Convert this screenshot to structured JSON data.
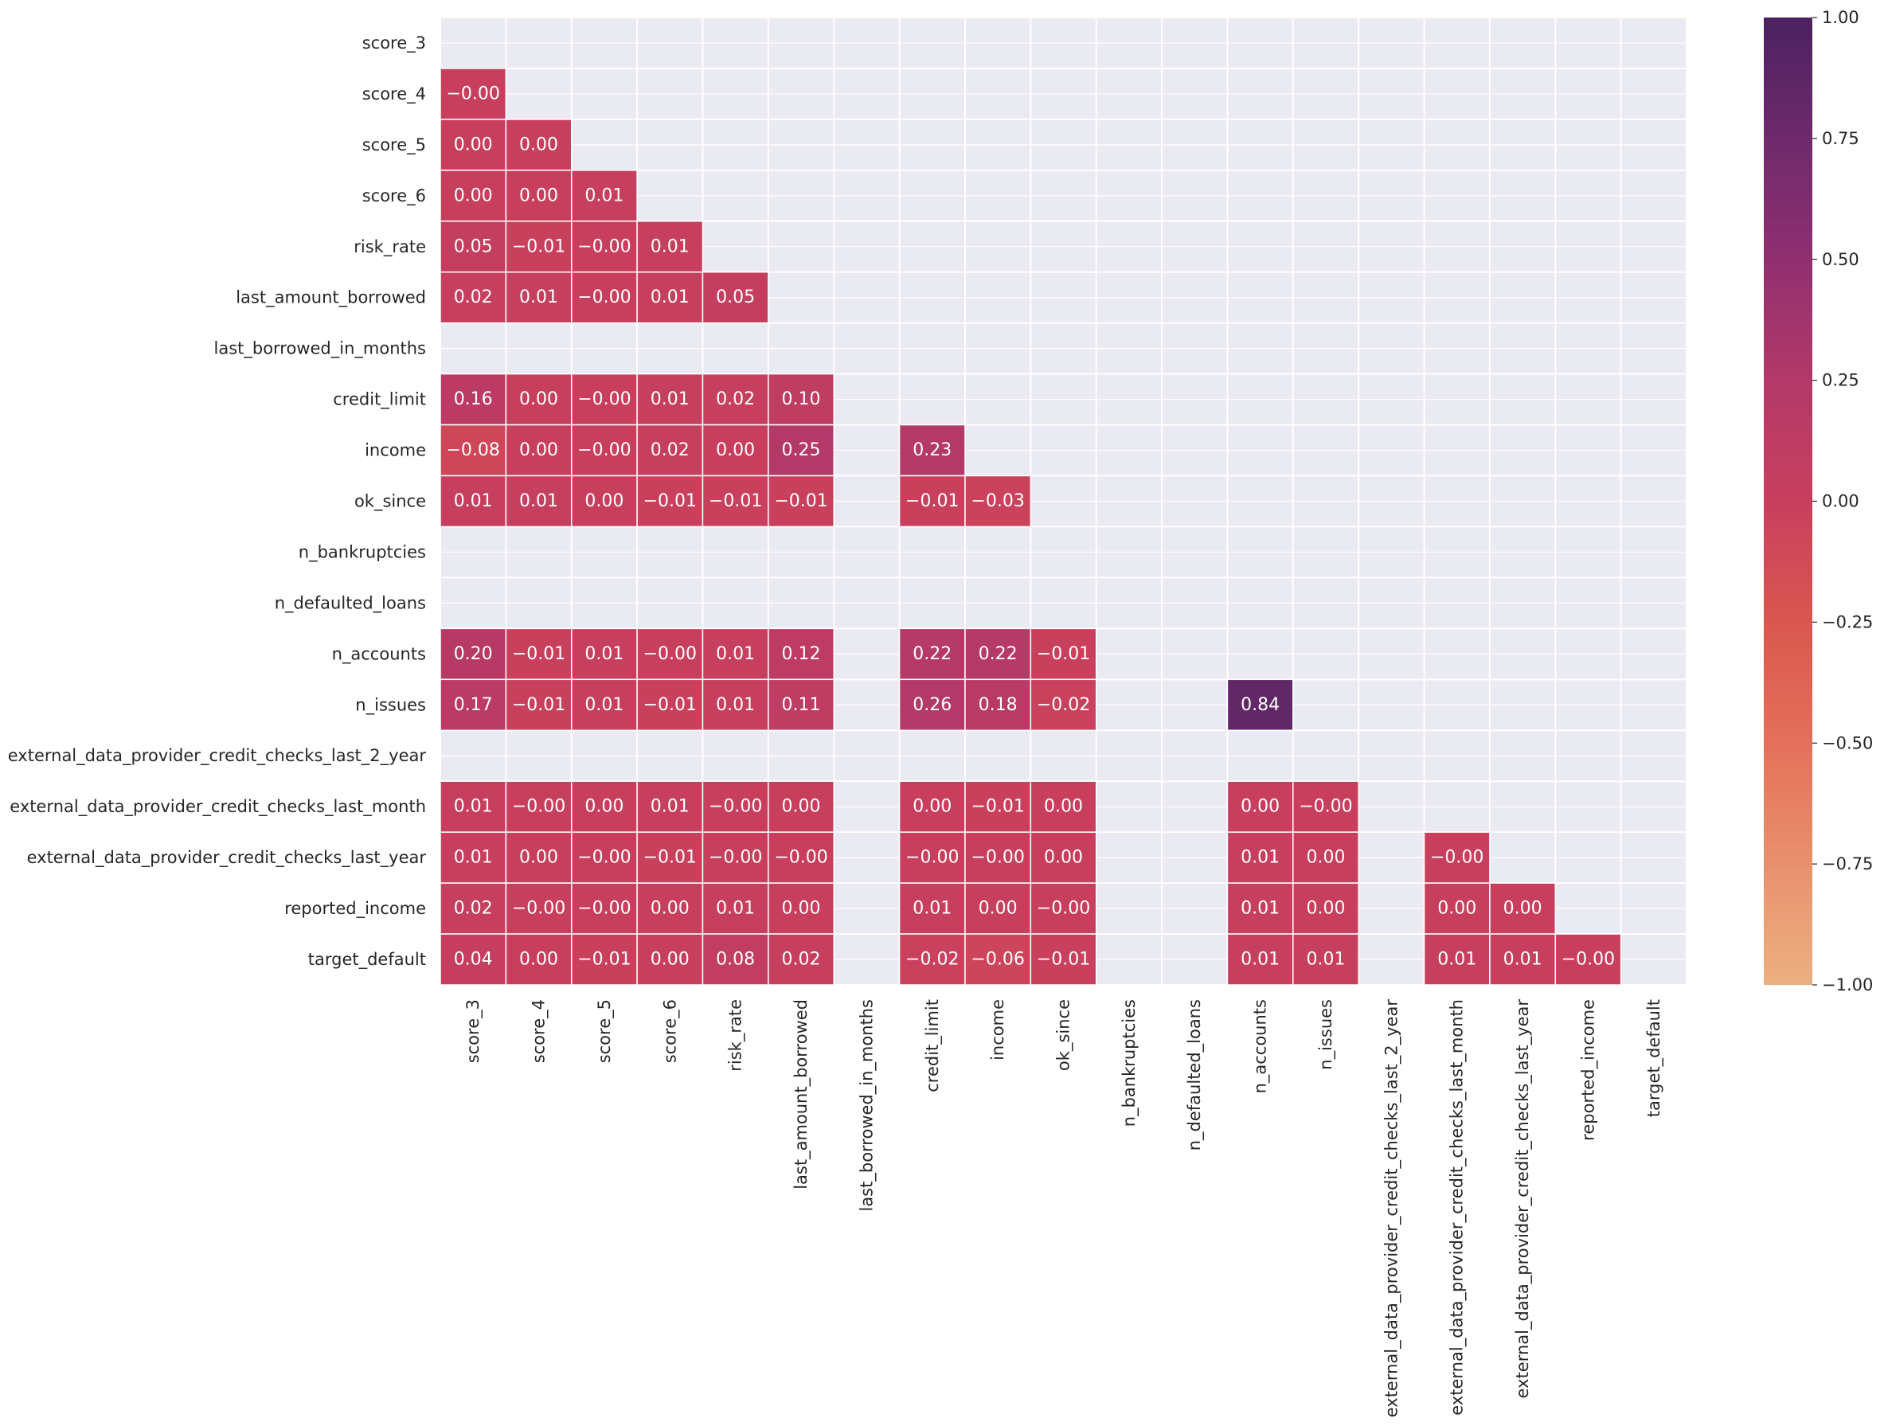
{
  "chart_data": {
    "type": "heatmap",
    "title": "",
    "xlabel": "",
    "ylabel": "",
    "variables": [
      "score_3",
      "score_4",
      "score_5",
      "score_6",
      "risk_rate",
      "last_amount_borrowed",
      "last_borrowed_in_months",
      "credit_limit",
      "income",
      "ok_since",
      "n_bankruptcies",
      "n_defaulted_loans",
      "n_accounts",
      "n_issues",
      "external_data_provider_credit_checks_last_2_year",
      "external_data_provider_credit_checks_last_month",
      "external_data_provider_credit_checks_last_year",
      "reported_income",
      "target_default"
    ],
    "mask": "upper triangle including diagonal",
    "matrix": [
      [
        null,
        null,
        null,
        null,
        null,
        null,
        null,
        null,
        null,
        null,
        null,
        null,
        null,
        null,
        null,
        null,
        null,
        null,
        null
      ],
      [
        -0.0,
        null,
        null,
        null,
        null,
        null,
        null,
        null,
        null,
        null,
        null,
        null,
        null,
        null,
        null,
        null,
        null,
        null,
        null
      ],
      [
        0.0,
        0.0,
        null,
        null,
        null,
        null,
        null,
        null,
        null,
        null,
        null,
        null,
        null,
        null,
        null,
        null,
        null,
        null,
        null
      ],
      [
        0.0,
        0.0,
        0.01,
        null,
        null,
        null,
        null,
        null,
        null,
        null,
        null,
        null,
        null,
        null,
        null,
        null,
        null,
        null,
        null
      ],
      [
        0.05,
        -0.01,
        -0.0,
        0.01,
        null,
        null,
        null,
        null,
        null,
        null,
        null,
        null,
        null,
        null,
        null,
        null,
        null,
        null,
        null
      ],
      [
        0.02,
        0.01,
        -0.0,
        0.01,
        0.05,
        null,
        null,
        null,
        null,
        null,
        null,
        null,
        null,
        null,
        null,
        null,
        null,
        null,
        null
      ],
      [
        null,
        null,
        null,
        null,
        null,
        null,
        null,
        null,
        null,
        null,
        null,
        null,
        null,
        null,
        null,
        null,
        null,
        null,
        null
      ],
      [
        0.16,
        0.0,
        -0.0,
        0.01,
        0.02,
        0.1,
        null,
        null,
        null,
        null,
        null,
        null,
        null,
        null,
        null,
        null,
        null,
        null,
        null
      ],
      [
        -0.08,
        0.0,
        -0.0,
        0.02,
        0.0,
        0.25,
        null,
        0.23,
        null,
        null,
        null,
        null,
        null,
        null,
        null,
        null,
        null,
        null,
        null
      ],
      [
        0.01,
        0.01,
        0.0,
        -0.01,
        -0.01,
        -0.01,
        null,
        -0.01,
        -0.03,
        null,
        null,
        null,
        null,
        null,
        null,
        null,
        null,
        null,
        null
      ],
      [
        null,
        null,
        null,
        null,
        null,
        null,
        null,
        null,
        null,
        null,
        null,
        null,
        null,
        null,
        null,
        null,
        null,
        null,
        null
      ],
      [
        null,
        null,
        null,
        null,
        null,
        null,
        null,
        null,
        null,
        null,
        null,
        null,
        null,
        null,
        null,
        null,
        null,
        null,
        null
      ],
      [
        0.2,
        -0.01,
        0.01,
        -0.0,
        0.01,
        0.12,
        null,
        0.22,
        0.22,
        -0.01,
        null,
        null,
        null,
        null,
        null,
        null,
        null,
        null,
        null
      ],
      [
        0.17,
        -0.01,
        0.01,
        -0.01,
        0.01,
        0.11,
        null,
        0.26,
        0.18,
        -0.02,
        null,
        null,
        0.84,
        null,
        null,
        null,
        null,
        null,
        null
      ],
      [
        null,
        null,
        null,
        null,
        null,
        null,
        null,
        null,
        null,
        null,
        null,
        null,
        null,
        null,
        null,
        null,
        null,
        null,
        null
      ],
      [
        0.01,
        -0.0,
        0.0,
        0.01,
        -0.0,
        0.0,
        null,
        0.0,
        -0.01,
        0.0,
        null,
        null,
        0.0,
        -0.0,
        null,
        null,
        null,
        null,
        null
      ],
      [
        0.01,
        0.0,
        -0.0,
        -0.01,
        -0.0,
        -0.0,
        null,
        -0.0,
        -0.0,
        0.0,
        null,
        null,
        0.01,
        0.0,
        null,
        -0.0,
        null,
        null,
        null
      ],
      [
        0.02,
        -0.0,
        -0.0,
        0.0,
        0.01,
        0.0,
        null,
        0.01,
        0.0,
        -0.0,
        null,
        null,
        0.01,
        0.0,
        null,
        0.0,
        0.0,
        null,
        null
      ],
      [
        0.04,
        0.0,
        -0.01,
        0.0,
        0.08,
        0.02,
        null,
        -0.02,
        -0.06,
        -0.01,
        null,
        null,
        0.01,
        0.01,
        null,
        0.01,
        0.01,
        -0.0,
        null
      ]
    ],
    "labels": [
      [
        "",
        "",
        "",
        "",
        "",
        "",
        "",
        "",
        "",
        "",
        "",
        "",
        "",
        "",
        "",
        "",
        "",
        "",
        ""
      ],
      [
        "-0.00",
        "",
        "",
        "",
        "",
        "",
        "",
        "",
        "",
        "",
        "",
        "",
        "",
        "",
        "",
        "",
        "",
        "",
        ""
      ],
      [
        "0.00",
        "0.00",
        "",
        "",
        "",
        "",
        "",
        "",
        "",
        "",
        "",
        "",
        "",
        "",
        "",
        "",
        "",
        "",
        ""
      ],
      [
        "0.00",
        "0.00",
        "0.01",
        "",
        "",
        "",
        "",
        "",
        "",
        "",
        "",
        "",
        "",
        "",
        "",
        "",
        "",
        "",
        ""
      ],
      [
        "0.05",
        "-0.01",
        "-0.00",
        "0.01",
        "",
        "",
        "",
        "",
        "",
        "",
        "",
        "",
        "",
        "",
        "",
        "",
        "",
        "",
        ""
      ],
      [
        "0.02",
        "0.01",
        "-0.00",
        "0.01",
        "0.05",
        "",
        "",
        "",
        "",
        "",
        "",
        "",
        "",
        "",
        "",
        "",
        "",
        "",
        ""
      ],
      [
        "",
        "",
        "",
        "",
        "",
        "",
        "",
        "",
        "",
        "",
        "",
        "",
        "",
        "",
        "",
        "",
        "",
        "",
        ""
      ],
      [
        "0.16",
        "0.00",
        "-0.00",
        "0.01",
        "0.02",
        "0.10",
        "",
        "",
        "",
        "",
        "",
        "",
        "",
        "",
        "",
        "",
        "",
        "",
        ""
      ],
      [
        "-0.08",
        "0.00",
        "-0.00",
        "0.02",
        "0.00",
        "0.25",
        "",
        "0.23",
        "",
        "",
        "",
        "",
        "",
        "",
        "",
        "",
        "",
        "",
        ""
      ],
      [
        "0.01",
        "0.01",
        "0.00",
        "-0.01",
        "-0.01",
        "-0.01",
        "",
        "-0.01",
        "-0.03",
        "",
        "",
        "",
        "",
        "",
        "",
        "",
        "",
        "",
        ""
      ],
      [
        "",
        "",
        "",
        "",
        "",
        "",
        "",
        "",
        "",
        "",
        "",
        "",
        "",
        "",
        "",
        "",
        "",
        "",
        ""
      ],
      [
        "",
        "",
        "",
        "",
        "",
        "",
        "",
        "",
        "",
        "",
        "",
        "",
        "",
        "",
        "",
        "",
        "",
        "",
        ""
      ],
      [
        "0.20",
        "-0.01",
        "0.01",
        "-0.00",
        "0.01",
        "0.12",
        "",
        "0.22",
        "0.22",
        "-0.01",
        "",
        "",
        "",
        "",
        "",
        "",
        "",
        "",
        ""
      ],
      [
        "0.17",
        "-0.01",
        "0.01",
        "-0.01",
        "0.01",
        "0.11",
        "",
        "0.26",
        "0.18",
        "-0.02",
        "",
        "",
        "0.84",
        "",
        "",
        "",
        "",
        "",
        ""
      ],
      [
        "",
        "",
        "",
        "",
        "",
        "",
        "",
        "",
        "",
        "",
        "",
        "",
        "",
        "",
        "",
        "",
        "",
        "",
        ""
      ],
      [
        "0.01",
        "-0.00",
        "0.00",
        "0.01",
        "-0.00",
        "0.00",
        "",
        "0.00",
        "-0.01",
        "0.00",
        "",
        "",
        "0.00",
        "-0.00",
        "",
        "",
        "",
        "",
        ""
      ],
      [
        "0.01",
        "0.00",
        "-0.00",
        "-0.01",
        "-0.00",
        "-0.00",
        "",
        "-0.00",
        "-0.00",
        "0.00",
        "",
        "",
        "0.01",
        "0.00",
        "",
        "-0.00",
        "",
        "",
        ""
      ],
      [
        "0.02",
        "-0.00",
        "-0.00",
        "0.00",
        "0.01",
        "0.00",
        "",
        "0.01",
        "0.00",
        "-0.00",
        "",
        "",
        "0.01",
        "0.00",
        "",
        "0.00",
        "0.00",
        "",
        ""
      ],
      [
        "0.04",
        "0.00",
        "-0.01",
        "0.00",
        "0.08",
        "0.02",
        "",
        "-0.02",
        "-0.06",
        "-0.01",
        "",
        "",
        "0.01",
        "0.01",
        "",
        "0.01",
        "0.01",
        "-0.00",
        ""
      ]
    ],
    "colormap": {
      "name": "flare",
      "vmin": -1.0,
      "vmax": 1.0,
      "stops": [
        {
          "v": -1.0,
          "color": "#edb081"
        },
        {
          "v": -0.5,
          "color": "#e4705a"
        },
        {
          "v": -0.25,
          "color": "#d9574f"
        },
        {
          "v": 0.0,
          "color": "#c83f5e"
        },
        {
          "v": 0.25,
          "color": "#b33968"
        },
        {
          "v": 0.5,
          "color": "#902f70"
        },
        {
          "v": 0.75,
          "color": "#6e2a6b"
        },
        {
          "v": 1.0,
          "color": "#4b2160"
        }
      ]
    },
    "colorbar_ticks": [
      "1.00",
      "0.75",
      "0.50",
      "0.25",
      "0.00",
      "−0.25",
      "−0.50",
      "−0.75",
      "−1.00"
    ],
    "colorbar_tick_values": [
      1.0,
      0.75,
      0.5,
      0.25,
      0.0,
      -0.25,
      -0.5,
      -0.75,
      -1.0
    ],
    "background_color": "#eaeaf2",
    "grid": true,
    "legend": "colorbar right"
  }
}
